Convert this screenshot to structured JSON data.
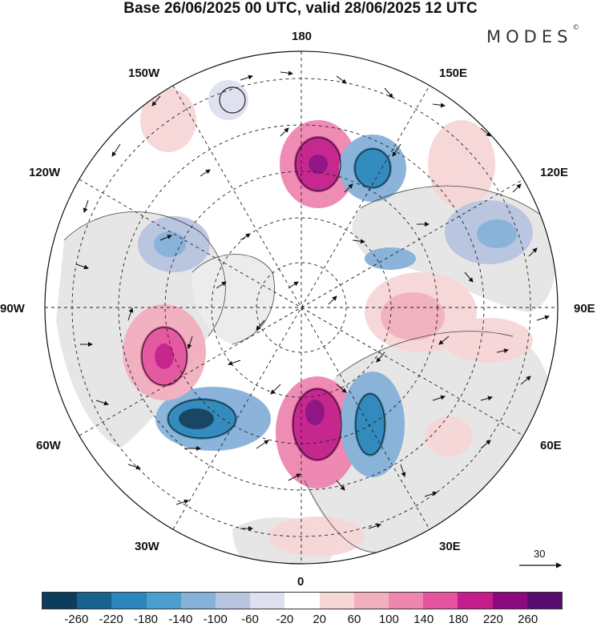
{
  "title": "Base 26/06/2025 00 UTC, valid 28/06/2025 12 UTC",
  "logo": "MODES",
  "logo_mark": "©",
  "map": {
    "projection": "north polar stereographic",
    "longitude_labels": [
      "180",
      "150E",
      "120E",
      "90E",
      "60E",
      "30E",
      "0",
      "30W",
      "60W",
      "90W",
      "120W",
      "150W"
    ],
    "reference_vector": {
      "label": "30"
    }
  },
  "colorbar": {
    "colors": [
      "#0d3d5c",
      "#17628f",
      "#2a86bb",
      "#4a9fcf",
      "#86b1d9",
      "#b8c4e0",
      "#dedff0",
      "#ffffff",
      "#f7d6d6",
      "#f2afbe",
      "#ef86b0",
      "#e5529e",
      "#c51d8b",
      "#8c0a80",
      "#5a0b70"
    ],
    "tick_labels": [
      "-260",
      "-220",
      "-180",
      "-140",
      "-100",
      "-60",
      "-20",
      "20",
      "60",
      "100",
      "140",
      "180",
      "220",
      "260"
    ]
  },
  "colors": {
    "grid": "#222222",
    "coast": "#444444",
    "land": "#e6e6e6"
  }
}
